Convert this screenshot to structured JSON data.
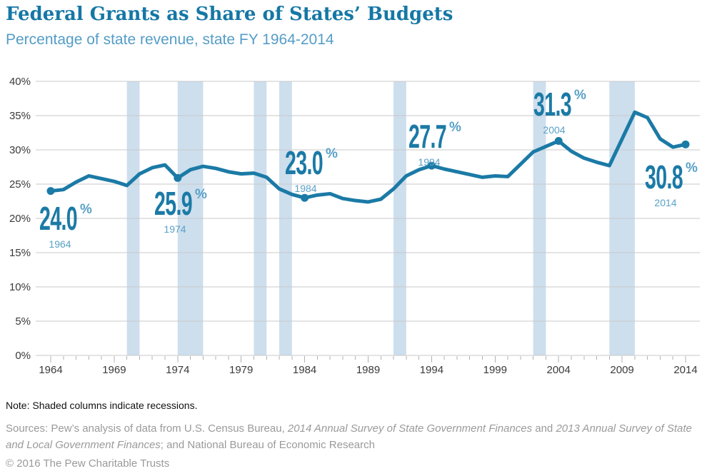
{
  "header": {
    "title": "Federal Grants as Share of States’ Budgets",
    "subtitle": "Percentage of state revenue, state FY 1964-2014"
  },
  "chart_data": {
    "type": "line",
    "title": "Federal Grants as Share of States’ Budgets",
    "subtitle": "Percentage of state revenue, state FY 1964-2014",
    "x": [
      1964,
      1965,
      1966,
      1967,
      1968,
      1969,
      1970,
      1971,
      1972,
      1973,
      1974,
      1975,
      1976,
      1977,
      1978,
      1979,
      1980,
      1981,
      1982,
      1983,
      1984,
      1985,
      1986,
      1987,
      1988,
      1989,
      1990,
      1991,
      1992,
      1993,
      1994,
      1995,
      1996,
      1997,
      1998,
      1999,
      2000,
      2001,
      2002,
      2003,
      2004,
      2005,
      2006,
      2007,
      2008,
      2009,
      2010,
      2011,
      2012,
      2013,
      2014
    ],
    "values": [
      24.0,
      24.2,
      25.3,
      26.2,
      25.8,
      25.4,
      24.8,
      26.5,
      27.4,
      27.8,
      25.9,
      27.1,
      27.6,
      27.3,
      26.8,
      26.5,
      26.6,
      26.0,
      24.3,
      23.5,
      23.0,
      23.4,
      23.6,
      22.9,
      22.6,
      22.4,
      22.8,
      24.3,
      26.2,
      27.1,
      27.7,
      27.2,
      26.8,
      26.4,
      26.0,
      26.2,
      26.1,
      27.9,
      29.7,
      30.5,
      31.3,
      29.8,
      28.8,
      28.2,
      27.7,
      31.6,
      35.5,
      34.7,
      31.6,
      30.4,
      30.8
    ],
    "ylim": [
      0,
      40
    ],
    "grid": "horizontal",
    "legend": "none",
    "y_ticks": [
      {
        "value": 40,
        "label": "40%"
      },
      {
        "value": 35,
        "label": "35%"
      },
      {
        "value": 30,
        "label": "30%"
      },
      {
        "value": 25,
        "label": "25%"
      },
      {
        "value": 20,
        "label": "20%"
      },
      {
        "value": 15,
        "label": "15%"
      },
      {
        "value": 10,
        "label": "10%"
      },
      {
        "value": 5,
        "label": "5%"
      },
      {
        "value": 0,
        "label": "0%"
      }
    ],
    "x_ticks": [
      {
        "value": 1964,
        "label": "1964"
      },
      {
        "value": 1969,
        "label": "1969"
      },
      {
        "value": 1974,
        "label": "1974"
      },
      {
        "value": 1979,
        "label": "1979"
      },
      {
        "value": 1984,
        "label": "1984"
      },
      {
        "value": 1989,
        "label": "1989"
      },
      {
        "value": 1994,
        "label": "1994"
      },
      {
        "value": 1999,
        "label": "1999"
      },
      {
        "value": 2004,
        "label": "2004"
      },
      {
        "value": 2009,
        "label": "2009"
      },
      {
        "value": 2014,
        "label": "2014"
      }
    ],
    "marked_points": [
      {
        "year": 1964,
        "value": 24.0,
        "value_label": "24.0",
        "percent_sign": "%",
        "year_label": "1964"
      },
      {
        "year": 1974,
        "value": 25.9,
        "value_label": "25.9",
        "percent_sign": "%",
        "year_label": "1974"
      },
      {
        "year": 1984,
        "value": 23.0,
        "value_label": "23.0",
        "percent_sign": "%",
        "year_label": "1984"
      },
      {
        "year": 1994,
        "value": 27.7,
        "value_label": "27.7",
        "percent_sign": "%",
        "year_label": "1994"
      },
      {
        "year": 2004,
        "value": 31.3,
        "value_label": "31.3",
        "percent_sign": "%",
        "year_label": "2004"
      },
      {
        "year": 2014,
        "value": 30.8,
        "value_label": "30.8",
        "percent_sign": "%",
        "year_label": "2014"
      }
    ],
    "recessions": [
      [
        1970,
        1971
      ],
      [
        1974,
        1976
      ],
      [
        1980,
        1981
      ],
      [
        1982,
        1983
      ],
      [
        1991,
        1992
      ],
      [
        2002,
        2003
      ],
      [
        2008,
        2010
      ]
    ],
    "colors": {
      "line": "#1b7aa6",
      "marker": "#1b7aa6",
      "value_label": "#1b7aa6",
      "light_accent": "#58a1c8",
      "title": "#1577a5",
      "subtitle": "#549dc7",
      "recession_band": "#cddeed",
      "gridline": "#c9c9c9",
      "tick": "#b0b0b0",
      "axis_text": "#3a3a3a",
      "muted_text": "#9a9a9a"
    }
  },
  "footer": {
    "note": "Note: Shaded columns indicate recessions.",
    "sources_segments": [
      {
        "text": "Sources: Pew’s analysis of data from U.S. Census Bureau, ",
        "italic": false
      },
      {
        "text": "2014 Annual Survey of State Government Finances",
        "italic": true
      },
      {
        "text": " and ",
        "italic": false
      },
      {
        "text": "2013 Annual Survey of State and Local Government Finances",
        "italic": true
      },
      {
        "text": "; and National Bureau of Economic Research",
        "italic": false
      }
    ],
    "copyright": "© 2016 The Pew Charitable Trusts"
  }
}
